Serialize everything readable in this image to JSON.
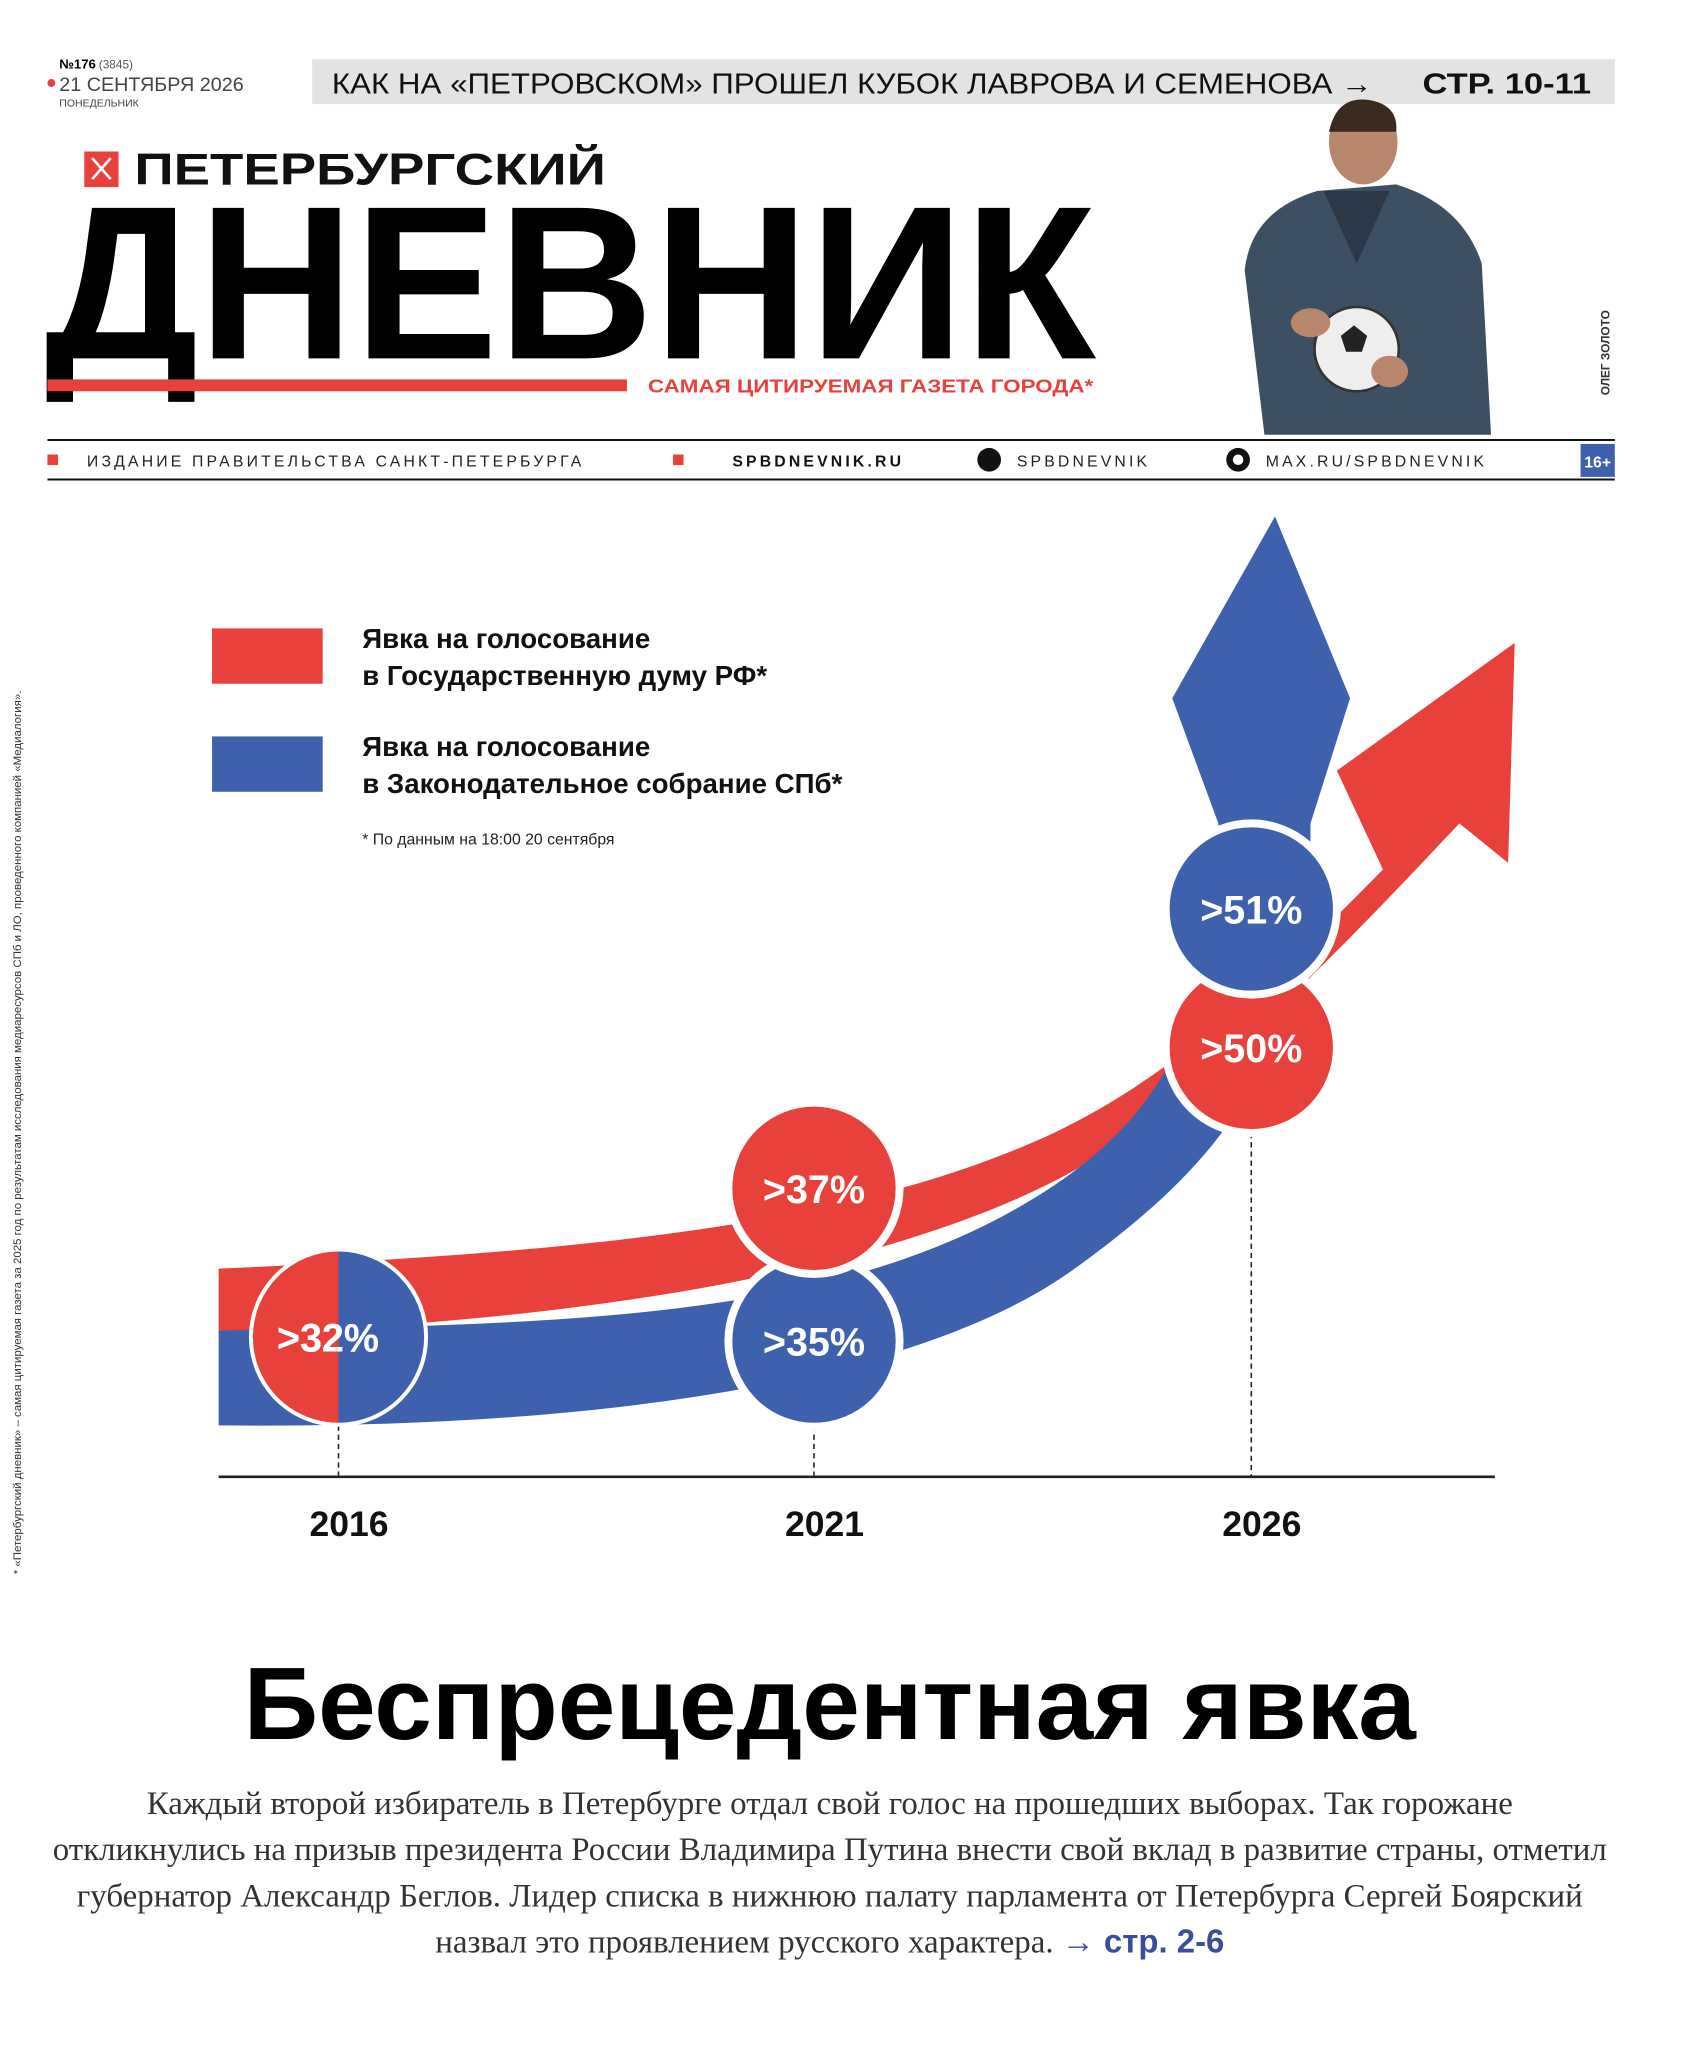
{
  "masthead": {
    "issue_number": "№176",
    "issue_total": "(3845)",
    "date": "21 СЕНТЯБРЯ 2026",
    "weekday": "ПОНЕДЕЛЬНИК",
    "teaser": "КАК НА «ПЕТРОВСКОМ» ПРОШЕЛ КУБОК ЛАВРОВА И СЕМЕНОВА →",
    "teaser_pages": "СТР. 10-11",
    "title_top": "ПЕТЕРБУРГСКИЙ",
    "title_main": "ДНЕВНИК",
    "tagline": "САМАЯ ЦИТИРУЕМАЯ ГАЗЕТА ГОРОДА*",
    "photo_credit": "ОЛЕГ ЗОЛОТО"
  },
  "info_bar": {
    "publisher": "ИЗДАНИЕ ПРАВИТЕЛЬСТВА САНКТ-ПЕТЕРБУРГА",
    "site": "SPBDNEVNIK.RU",
    "vk": "SPBDNEVNIK",
    "max": "MAX.RU/SPBDNEVNIK",
    "age": "16+"
  },
  "side_note": "* «Петербургский дневник» – самая цитируемая газета за 2025 год по результатам исследования медиаресурсов СПб и ЛО, проведенного компанией «Медиалогия».",
  "chart_data": {
    "type": "arrow-infographic",
    "categories": [
      "2016",
      "2021",
      "2026"
    ],
    "series": [
      {
        "name": "Явка на голосование в Государственную думу РФ*",
        "color": "#e8403b",
        "values": [
          32,
          37,
          50
        ],
        "value_labels": [
          ">32%",
          ">37%",
          ">50%"
        ]
      },
      {
        "name": "Явка на голосование в Законодательное собрание СПб*",
        "color": "#3d61ad",
        "values": [
          32,
          35,
          51
        ],
        "value_labels": [
          ">32%",
          ">35%",
          ">51%"
        ]
      }
    ],
    "note": "* По данным на 18:00 20 сентября"
  },
  "article": {
    "headline": "Беспрецедентная явка",
    "lead": "Каждый второй избиратель в Петербурге отдал свой голос на прошедших выборах. Так горожане откликнулись на призыв президента России Владимира Путина внести свой вклад в развитие страны, отметил губернатор Александр Беглов. Лидер списка в нижнюю палату парламента от Петербурга Сергей Боярский назвал это проявлением русского характера.",
    "link": "→ стр. 2-6"
  }
}
